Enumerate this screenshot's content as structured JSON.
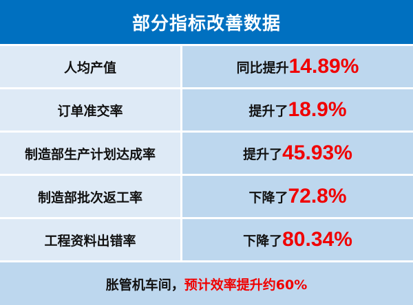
{
  "title": "部分指标改善数据",
  "rows": [
    {
      "label": "人均产值",
      "prefix": "同比提升",
      "value": "14.89%"
    },
    {
      "label": "订单准交率",
      "prefix": "提升了",
      "value": "18.9%"
    },
    {
      "label": "制造部生产计划达成率",
      "prefix": "提升了",
      "value": "45.93%"
    },
    {
      "label": "制造部批次返工率",
      "prefix": "下降了",
      "value": "72.8%"
    },
    {
      "label": "工程资料出错率",
      "prefix": "下降了",
      "value": "80.34%"
    }
  ],
  "footer": {
    "lead": "胀管机车间，",
    "highlight": "预计效率提升约60%"
  },
  "colors": {
    "header": "#0070C0",
    "left_cell": "#DEEAF6",
    "right_cell": "#BDD7EE",
    "highlight": "#F00000"
  }
}
